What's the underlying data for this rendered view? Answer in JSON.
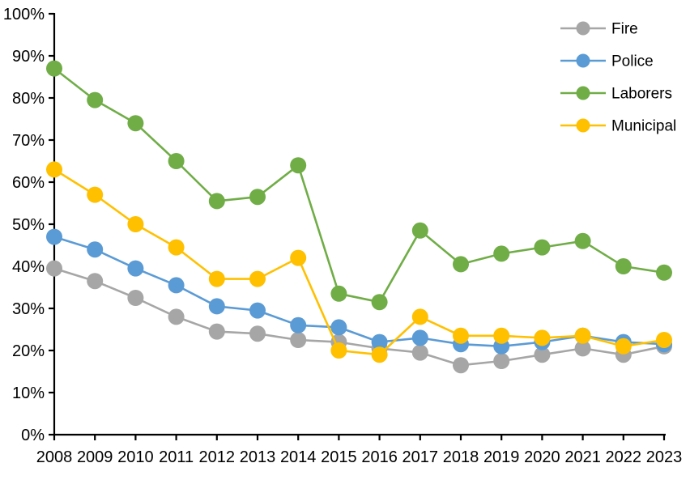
{
  "chart_data": {
    "type": "line",
    "title": "",
    "xlabel": "",
    "ylabel": "",
    "x": [
      "2008",
      "2009",
      "2010",
      "2011",
      "2012",
      "2013",
      "2014",
      "2015",
      "2016",
      "2017",
      "2018",
      "2019",
      "2020",
      "2021",
      "2022",
      "2023"
    ],
    "series": [
      {
        "name": "Fire",
        "color": "#A6A6A6",
        "values": [
          39.5,
          36.5,
          32.5,
          28,
          24.5,
          24,
          22.5,
          22,
          20.5,
          19.5,
          16.5,
          17.5,
          19,
          20.5,
          19,
          21
        ]
      },
      {
        "name": "Police",
        "color": "#5B9BD5",
        "values": [
          47,
          44,
          39.5,
          35.5,
          30.5,
          29.5,
          26,
          25.5,
          22,
          23,
          21.5,
          21,
          22,
          23.5,
          22,
          21.5
        ]
      },
      {
        "name": "Laborers",
        "color": "#70AD47",
        "values": [
          87,
          79.5,
          74,
          65,
          55.5,
          56.5,
          64,
          33.5,
          31.5,
          48.5,
          40.5,
          43,
          44.5,
          46,
          40,
          38.5
        ]
      },
      {
        "name": "Municipal",
        "color": "#FFC000",
        "values": [
          63,
          57,
          50,
          44.5,
          37,
          37,
          42,
          20,
          19,
          28,
          23.5,
          23.5,
          23,
          23.5,
          21,
          22.5
        ]
      }
    ],
    "ylim": [
      0,
      100
    ],
    "ytick_step": 10,
    "ytick_suffix": "%",
    "ytick_labels": [
      "0%",
      "10%",
      "20%",
      "30%",
      "40%",
      "50%",
      "60%",
      "70%",
      "80%",
      "90%",
      "100%"
    ],
    "grid": false,
    "legend_position": "top-right",
    "legend_entries": [
      "Fire",
      "Police",
      "Laborers",
      "Municipal"
    ],
    "axis_color": "#000000",
    "background": "#FFFFFF"
  }
}
